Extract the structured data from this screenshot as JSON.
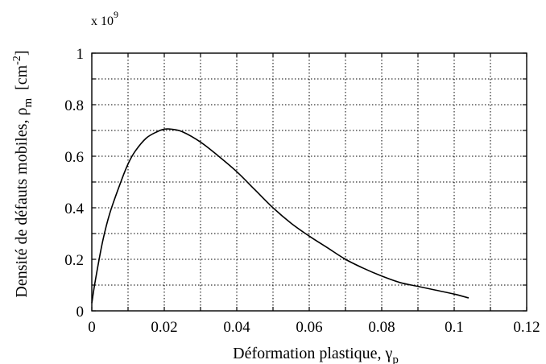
{
  "chart_data": {
    "type": "line",
    "title": "",
    "xlabel": "Déformation plastique, γ",
    "xlabel_subscript": "p",
    "ylabel": "Densité de défauts mobiles, ρ",
    "ylabel_subscript": "m",
    "ylabel_unit": "[cm",
    "ylabel_unit_exponent": "-2",
    "ylabel_unit_close": "]",
    "y_multiplier": "x 10",
    "y_multiplier_exponent": "9",
    "xlim": [
      0,
      0.12
    ],
    "ylim": [
      0,
      1
    ],
    "x_ticks": [
      0,
      0.02,
      0.04,
      0.06,
      0.08,
      0.1,
      0.12
    ],
    "x_tick_labels": [
      "0",
      "0.02",
      "0.04",
      "0.06",
      "0.08",
      "0.1",
      "0.12"
    ],
    "y_ticks": [
      0,
      0.2,
      0.4,
      0.6,
      0.8,
      1
    ],
    "y_tick_labels": [
      "0",
      "0.2",
      "0.4",
      "0.6",
      "0.8",
      "1"
    ],
    "x_grid_step": 0.01,
    "y_grid_step": 0.1,
    "grid": true,
    "grid_style": "dotted",
    "legend": "none",
    "line_color": "#000000",
    "series": [
      {
        "x": [
          0,
          0.001,
          0.003,
          0.005,
          0.008,
          0.01,
          0.012,
          0.015,
          0.018,
          0.02,
          0.022,
          0.025,
          0.03,
          0.035,
          0.04,
          0.045,
          0.05,
          0.055,
          0.06,
          0.065,
          0.07,
          0.075,
          0.08,
          0.085,
          0.09,
          0.095,
          0.1,
          0.104
        ],
        "y": [
          0.03,
          0.12,
          0.27,
          0.38,
          0.5,
          0.57,
          0.62,
          0.67,
          0.695,
          0.705,
          0.705,
          0.695,
          0.655,
          0.6,
          0.54,
          0.47,
          0.4,
          0.34,
          0.29,
          0.245,
          0.2,
          0.165,
          0.135,
          0.11,
          0.095,
          0.08,
          0.065,
          0.05
        ]
      }
    ]
  }
}
